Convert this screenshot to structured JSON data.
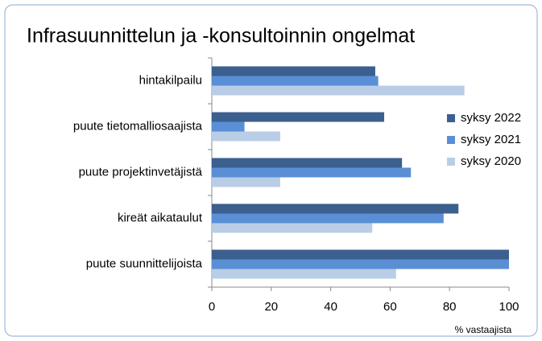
{
  "chart_data": {
    "type": "bar",
    "orientation": "horizontal",
    "title": "Infrasuunnittelun ja -konsultoinnin ongelmat",
    "x_label": "% vastaajista",
    "categories": [
      "hintakilpailu",
      "puute tietomalliosaajista",
      "puute projektinvetäjistä",
      "kireät aikataulut",
      "puute suunnittelijoista"
    ],
    "series": [
      {
        "name": "syksy 2022",
        "color": "#3b5f8e",
        "values": [
          55,
          58,
          64,
          83,
          100
        ]
      },
      {
        "name": "syksy 2021",
        "color": "#5a8fd5",
        "values": [
          56,
          11,
          67,
          78,
          100
        ]
      },
      {
        "name": "syksy 2020",
        "color": "#b9cde6",
        "values": [
          85,
          23,
          23,
          54,
          62
        ]
      }
    ],
    "xlim": [
      0,
      100
    ],
    "xticks": [
      0,
      20,
      40,
      60,
      80,
      100
    ],
    "grid": false,
    "legend": "right"
  }
}
